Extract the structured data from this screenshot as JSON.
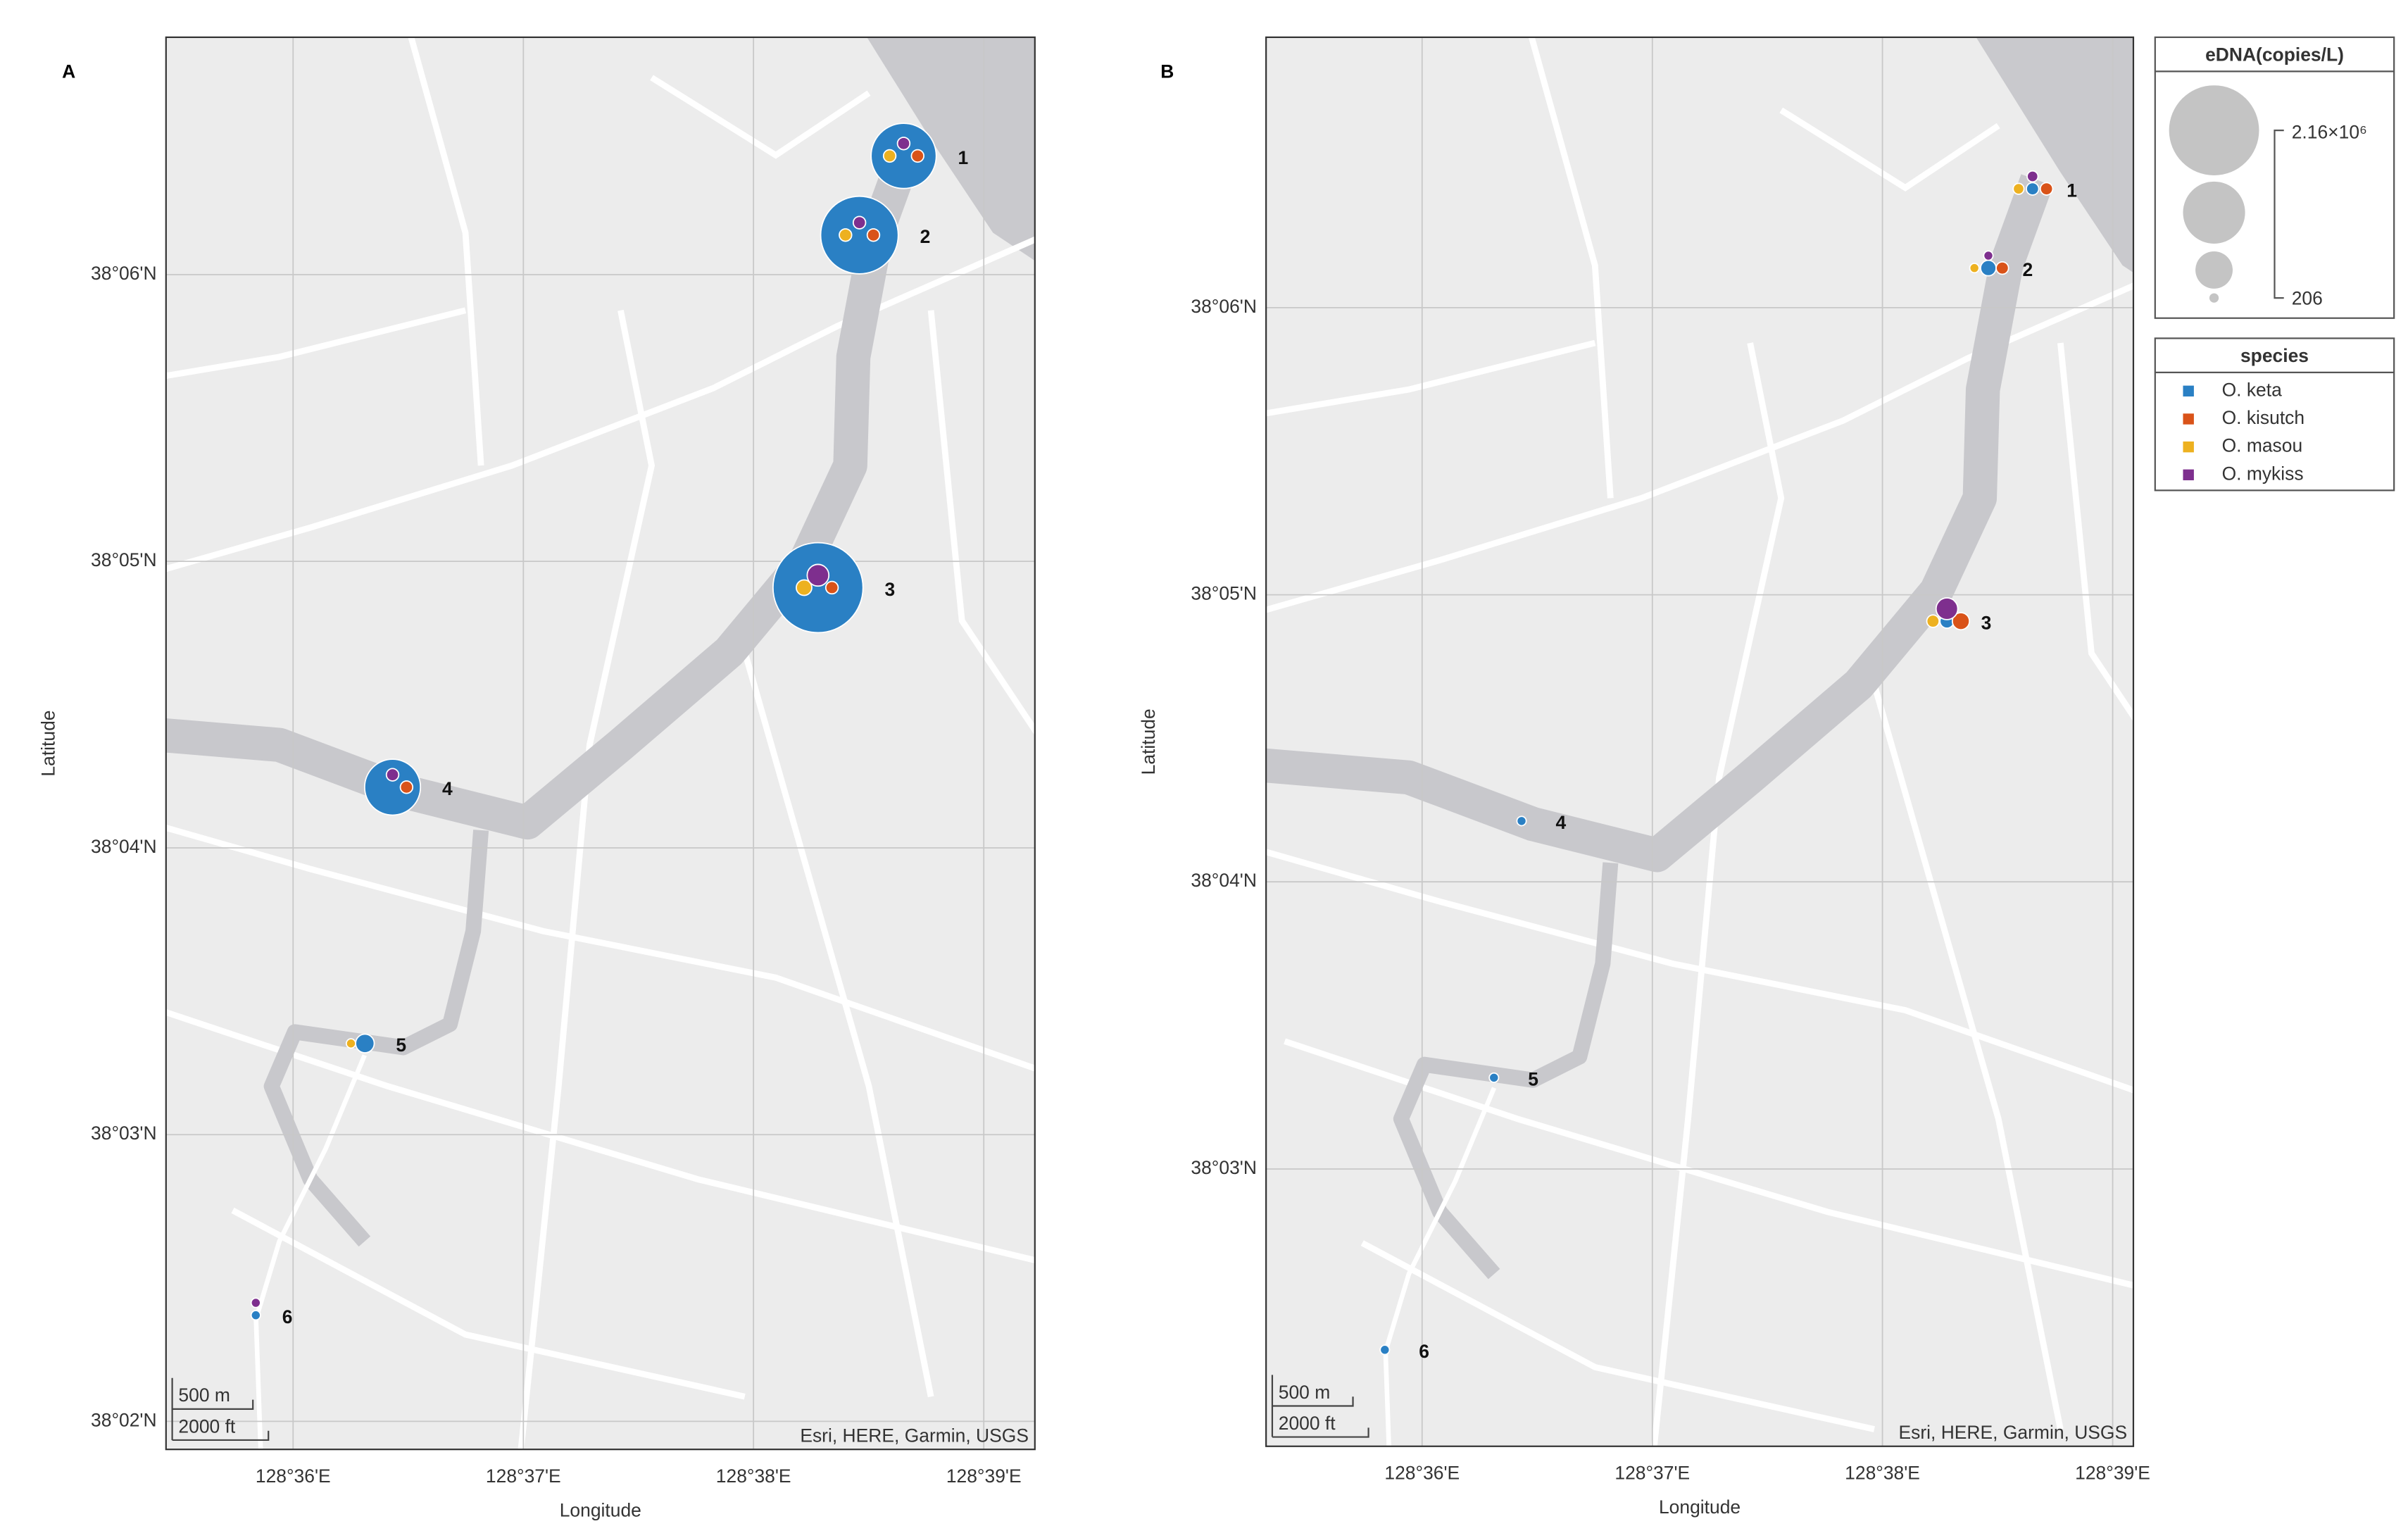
{
  "chart_data": [
    {
      "type": "bubble-map",
      "label": "A",
      "xlabel": "Longitude",
      "ylabel": "Latitude",
      "xlim": [
        128.5908,
        128.6537
      ],
      "ylim": [
        38.0317,
        38.1138
      ],
      "xticks": [
        {
          "value": 128.6,
          "label": "128°36'E"
        },
        {
          "value": 128.61667,
          "label": "128°37'E"
        },
        {
          "value": 128.63333,
          "label": "128°38'E"
        },
        {
          "value": 128.65,
          "label": "128°39'E"
        }
      ],
      "yticks": [
        {
          "value": 38.03333,
          "label": "38°02'N"
        },
        {
          "value": 38.05,
          "label": "38°03'N"
        },
        {
          "value": 38.06667,
          "label": "38°04'N"
        },
        {
          "value": 38.08333,
          "label": "38°05'N"
        },
        {
          "value": 38.1,
          "label": "38°06'N"
        }
      ],
      "grid": true,
      "attribution": "Esri, HERE, Garmin, USGS",
      "scale_bar": [
        "500 m",
        "2000 ft"
      ],
      "sites": {
        "labels": [
          "1",
          "2",
          "3",
          "4",
          "5",
          "6"
        ],
        "lon": [
          128.6442,
          128.641,
          128.638,
          128.6072,
          128.6052,
          128.5973
        ],
        "lat": [
          38.1069,
          38.1023,
          38.0818,
          38.0702,
          38.0553,
          38.0395
        ]
      },
      "series": [
        {
          "color": "#2a80c4",
          "values": [
            1044000,
            1552000,
            2160000,
            729000,
            33200,
            206
          ]
        },
        {
          "color": "#d95319",
          "values": [
            4940,
            4940,
            4940,
            4940,
            null,
            null
          ]
        },
        {
          "color": "#edb120",
          "values": [
            4940,
            4940,
            15950,
            null,
            206,
            null
          ]
        },
        {
          "color": "#7e2f8e",
          "values": [
            4940,
            4940,
            56700,
            4940,
            null,
            206
          ]
        }
      ]
    },
    {
      "type": "bubble-map",
      "label": "B",
      "xlabel": "Longitude",
      "ylabel": "Latitude",
      "xlim": [
        128.5887,
        128.6515
      ],
      "ylim": [
        38.0339,
        38.1157
      ],
      "xticks": [
        {
          "value": 128.6,
          "label": "128°36'E"
        },
        {
          "value": 128.61667,
          "label": "128°37'E"
        },
        {
          "value": 128.63333,
          "label": "128°38'E"
        },
        {
          "value": 128.65,
          "label": "128°39'E"
        }
      ],
      "yticks": [
        {
          "value": 38.05,
          "label": "38°03'N"
        },
        {
          "value": 38.06667,
          "label": "38°04'N"
        },
        {
          "value": 38.08333,
          "label": "38°05'N"
        },
        {
          "value": 38.1,
          "label": "38°06'N"
        }
      ],
      "grid": true,
      "attribution": "Esri, HERE, Garmin, USGS",
      "scale_bar": [
        "500 m",
        "2000 ft"
      ],
      "sites": {
        "labels": [
          "1",
          "2",
          "3",
          "4",
          "5",
          "6"
        ],
        "lon": [
          128.6442,
          128.641,
          128.638,
          128.6072,
          128.6052,
          128.5973
        ],
        "lat": [
          38.1069,
          38.1023,
          38.0818,
          38.0702,
          38.0553,
          38.0395
        ]
      },
      "series": [
        {
          "name": "O. keta",
          "color": "#2a80c4",
          "values": [
            4940,
            15950,
            9660,
            206,
            206,
            206
          ]
        },
        {
          "name": "O. kisutch",
          "color": "#d95319",
          "values": [
            4940,
            4940,
            23800,
            null,
            null,
            null
          ]
        },
        {
          "name": "O. masou",
          "color": "#edb120",
          "values": [
            1790,
            206,
            4940,
            null,
            null,
            null
          ]
        },
        {
          "name": "O. mykiss",
          "color": "#7e2f8e",
          "values": [
            1790,
            206,
            56700,
            null,
            null,
            null
          ]
        }
      ],
      "size_legend": {
        "title": "eDNA(copies/L)",
        "range": [
          206,
          {
            "value": 2160000,
            "label": "2.16×10⁶"
          }
        ]
      },
      "species_legend_title": "species"
    }
  ]
}
